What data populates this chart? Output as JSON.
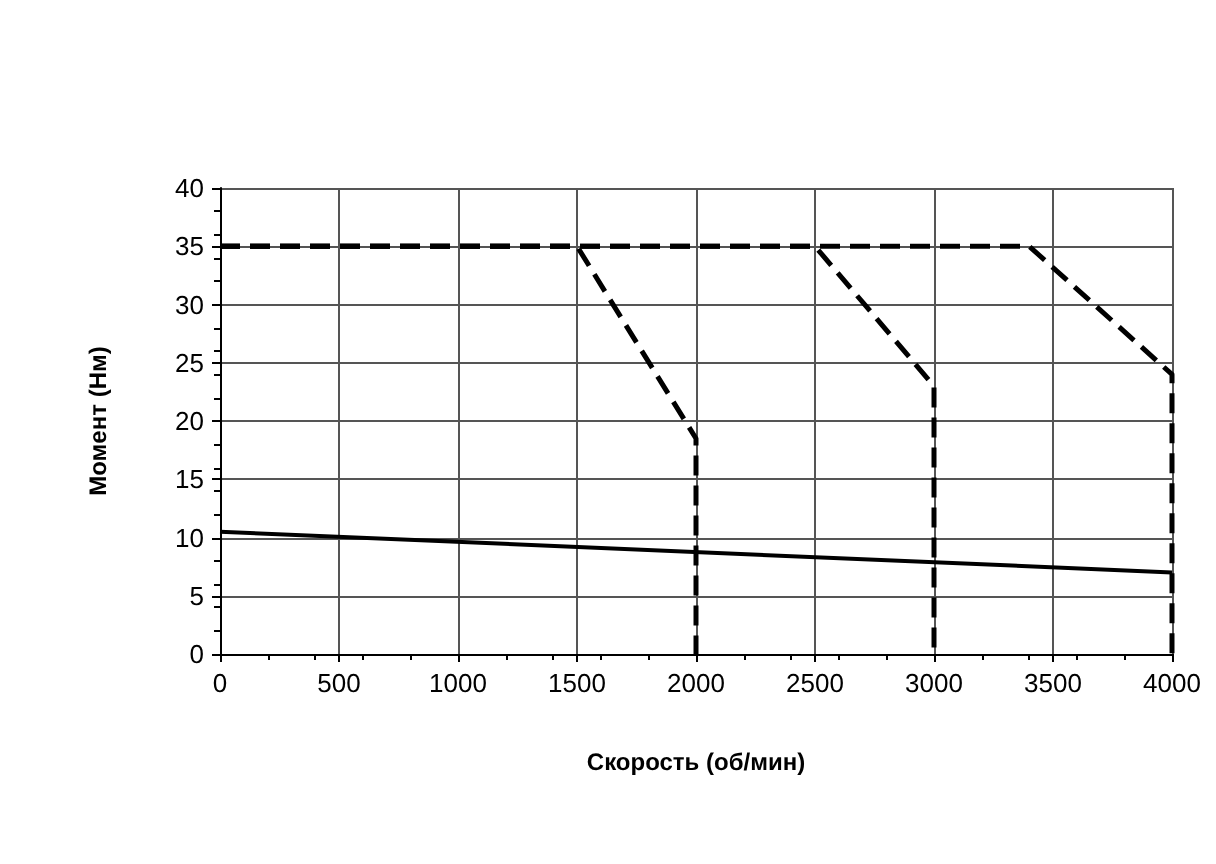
{
  "chart_data": {
    "type": "line",
    "xlabel": "Скорость (об/мин)",
    "ylabel": "Момент (Нм)",
    "xlim": [
      0,
      4000
    ],
    "xticks": [
      0,
      500,
      1000,
      1500,
      2000,
      2500,
      3000,
      3500,
      4000
    ],
    "ylim": [
      0,
      40
    ],
    "yticks": [
      0,
      5,
      10,
      15,
      20,
      25,
      30,
      35,
      40
    ],
    "grid": true,
    "marker": "none",
    "series": [
      {
        "color": "#000000",
        "line_style": "dashed",
        "x": [
          0,
          1500,
          2000,
          2000
        ],
        "values": [
          35,
          35,
          18.5,
          0
        ]
      },
      {
        "color": "#000000",
        "line_style": "dashed",
        "x": [
          0,
          2500,
          3000,
          3000
        ],
        "values": [
          35,
          35,
          23,
          0
        ]
      },
      {
        "color": "#000000",
        "line_style": "dashed",
        "x": [
          0,
          3400,
          4000,
          4000
        ],
        "values": [
          35,
          35,
          24,
          0
        ]
      },
      {
        "color": "#000000",
        "line_style": "solid",
        "x": [
          0,
          4000
        ],
        "values": [
          10.5,
          7
        ]
      }
    ]
  }
}
